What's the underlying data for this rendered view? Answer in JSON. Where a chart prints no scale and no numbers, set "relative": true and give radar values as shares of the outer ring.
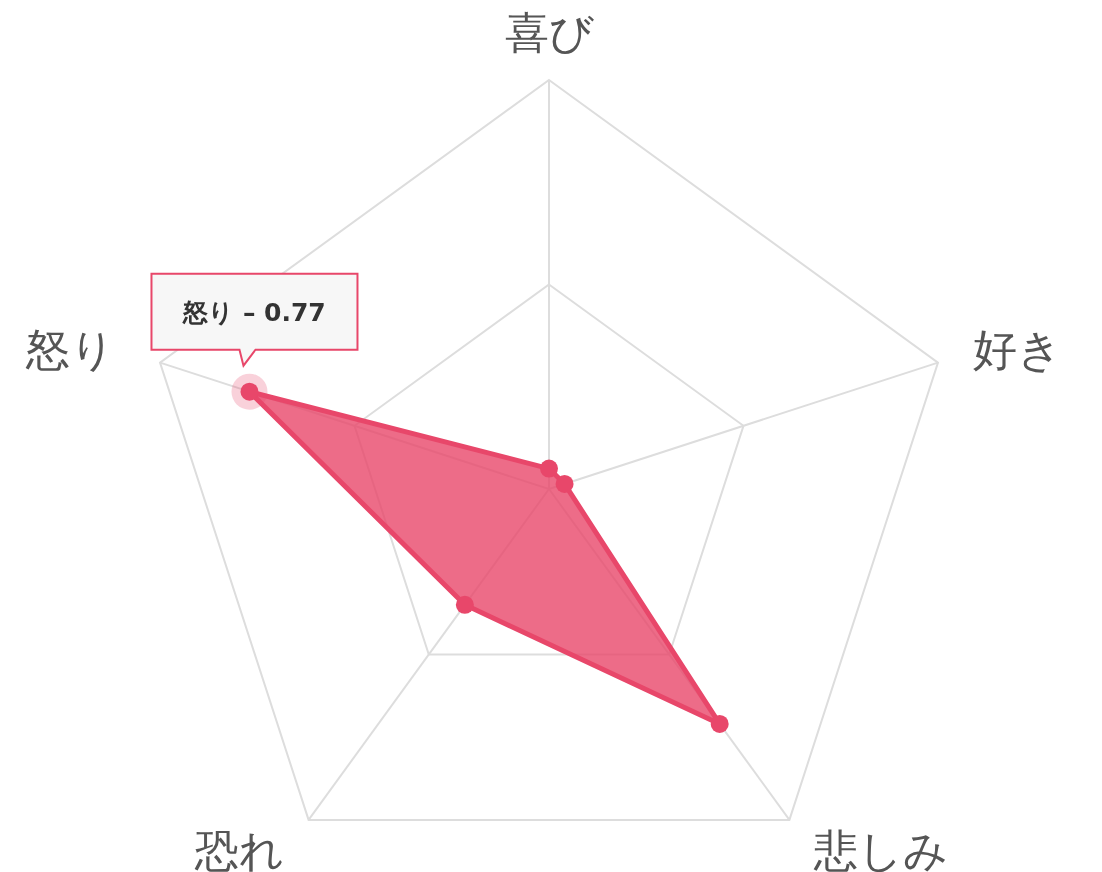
{
  "chart_data": {
    "type": "radar",
    "categories": [
      "喜び",
      "好き",
      "悲しみ",
      "恐れ",
      "怒り"
    ],
    "relative": true,
    "grid": true,
    "marker": "circle",
    "series": [
      {
        "color": "#e8476a",
        "values": [
          0.05,
          0.04,
          0.71,
          0.35,
          0.77
        ]
      }
    ],
    "annotations": [
      {
        "text": "怒り – 0.77",
        "x": "怒り"
      }
    ]
  }
}
